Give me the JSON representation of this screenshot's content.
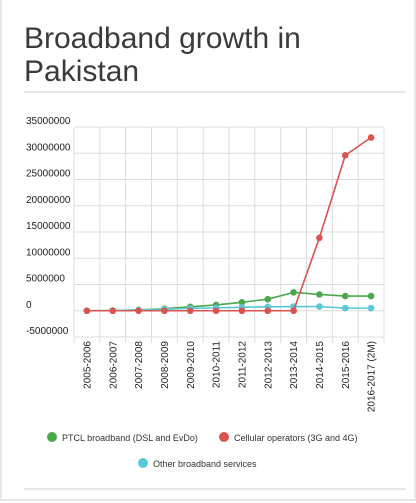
{
  "title": "Broadband growth in Pakistan",
  "chart_data": {
    "type": "line",
    "categories": [
      "2005-2006",
      "2006-2007",
      "2007-2008",
      "2008-2009",
      "2009-2010",
      "2010-2011",
      "2011-2012",
      "2012-2013",
      "2013-2014",
      "2014-2015",
      "2015-2016",
      "2016-2017 (2M)"
    ],
    "y_ticks": [
      "35000000",
      "30000000",
      "25000000",
      "20000000",
      "15000000",
      "10000000",
      "5000000",
      "0",
      "-5000000"
    ],
    "ylim": [
      -5000000,
      35000000
    ],
    "grid": true,
    "legend_position": "bottom",
    "series": [
      {
        "name": "PTCL broadband (DSL and EvDo)",
        "color": "#4aa84a",
        "values": [
          0,
          50000,
          150000,
          400000,
          750000,
          1100000,
          1600000,
          2200000,
          3500000,
          3100000,
          2800000,
          2800000
        ]
      },
      {
        "name": "Cellular operators (3G and 4G)",
        "color": "#d9534f",
        "values": [
          0,
          0,
          0,
          0,
          0,
          0,
          0,
          0,
          0,
          13900000,
          29600000,
          33000000
        ]
      },
      {
        "name": "Other broadband services",
        "color": "#5bc6d6",
        "values": [
          0,
          50000,
          150000,
          300000,
          450000,
          550000,
          650000,
          750000,
          800000,
          800000,
          500000,
          500000
        ]
      }
    ]
  }
}
